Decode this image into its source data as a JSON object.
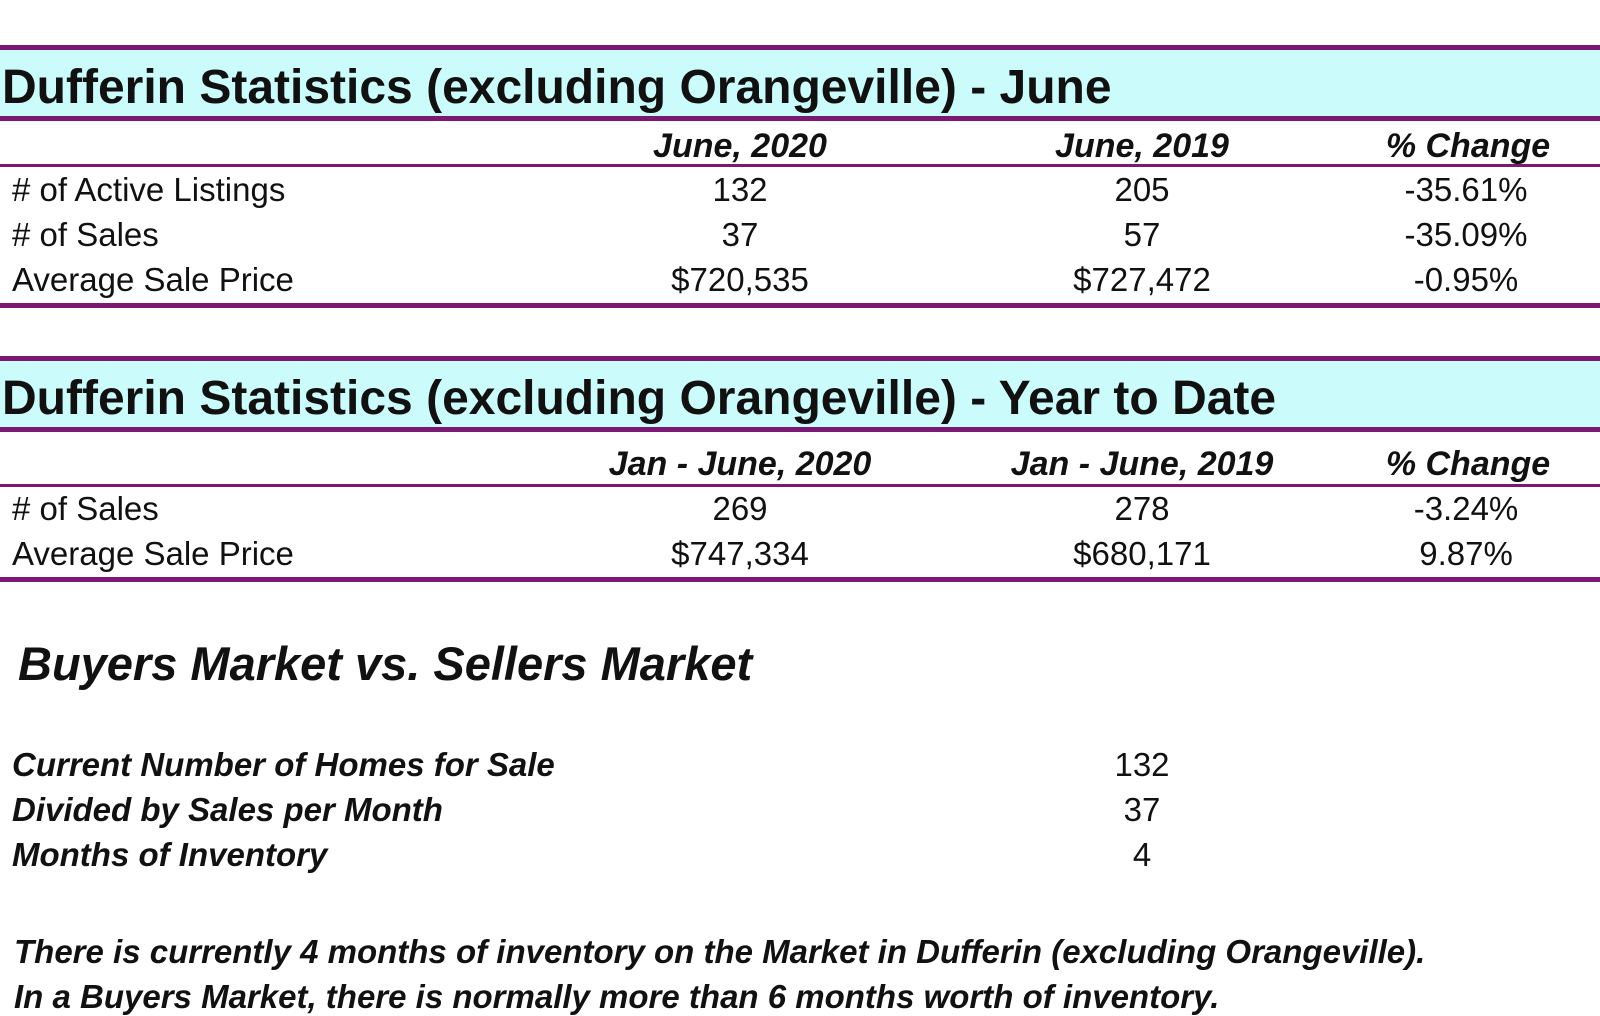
{
  "monthly": {
    "title": "Dufferin Statistics (excluding Orangeville) - June",
    "headers": [
      "June, 2020",
      "June, 2019",
      "% Change"
    ],
    "rows": [
      {
        "label": "# of Active Listings",
        "current": "132",
        "previous": "205",
        "change": "-35.61%"
      },
      {
        "label": "# of Sales",
        "current": "37",
        "previous": "57",
        "change": "-35.09%"
      },
      {
        "label": "Average Sale Price",
        "current": "$720,535",
        "previous": "$727,472",
        "change": "-0.95%"
      }
    ]
  },
  "ytd": {
    "title": "Dufferin Statistics (excluding Orangeville) - Year to Date",
    "headers": [
      "Jan - June, 2020",
      "Jan - June, 2019",
      "% Change"
    ],
    "rows": [
      {
        "label": "# of Sales",
        "current": "269",
        "previous": "278",
        "change": "-3.24%"
      },
      {
        "label": "Average Sale Price",
        "current": "$747,334",
        "previous": "$680,171",
        "change": "9.87%"
      }
    ]
  },
  "market": {
    "heading": "Buyers Market vs. Sellers Market",
    "inventory": [
      {
        "label": "Current Number of Homes for Sale",
        "value": "132"
      },
      {
        "label": "Divided by Sales per Month",
        "value": "37"
      },
      {
        "label": "Months of Inventory",
        "value": "4"
      }
    ],
    "notes": [
      "There is currently 4 months of inventory on the Market in Dufferin (excluding Orangeville).",
      "In a Buyers Market, there is normally more than 6 months worth of inventory."
    ]
  },
  "colors": {
    "rule": "#7b1874",
    "title_fill": "#ccfbfb"
  }
}
